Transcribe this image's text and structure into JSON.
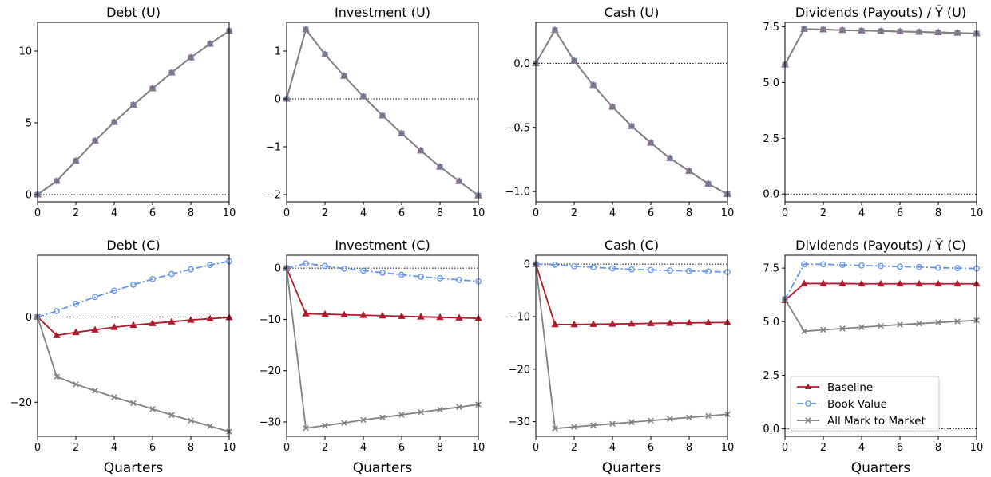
{
  "colors": {
    "baseline": "#b2182b",
    "book_value": "#6495ed",
    "mark_to_market": "#808080",
    "zero_line": "#000000"
  },
  "legend": {
    "placement": "lower-left",
    "entries": [
      {
        "label": "Baseline",
        "marker": "triangle",
        "style": "solid"
      },
      {
        "label": "Book Value",
        "marker": "circle",
        "style": "dashdot"
      },
      {
        "label": "All Mark to Market",
        "marker": "x",
        "style": "solid"
      }
    ]
  },
  "chart_data": [
    {
      "type": "line",
      "title": "Debt (U)",
      "xlabel": "",
      "ylabel": "",
      "x": [
        0,
        1,
        2,
        3,
        4,
        5,
        6,
        7,
        8,
        9,
        10
      ],
      "xlim": [
        0,
        10
      ],
      "xticks": [
        0,
        2,
        4,
        6,
        8,
        10
      ],
      "ylim": [
        -0.5,
        12
      ],
      "yticks": [
        0,
        5,
        10
      ],
      "ytick_labels": [
        "0",
        "5",
        "10"
      ],
      "zero_line": true,
      "series": [
        {
          "name": "Baseline",
          "values": [
            0,
            0.95,
            2.35,
            3.75,
            5.05,
            6.25,
            7.4,
            8.5,
            9.55,
            10.5,
            11.4
          ]
        },
        {
          "name": "Book Value",
          "values": [
            0,
            0.95,
            2.35,
            3.75,
            5.05,
            6.25,
            7.4,
            8.5,
            9.55,
            10.5,
            11.4
          ]
        },
        {
          "name": "All Mark to Market",
          "values": [
            0,
            0.95,
            2.35,
            3.75,
            5.05,
            6.25,
            7.4,
            8.5,
            9.55,
            10.5,
            11.4
          ]
        }
      ]
    },
    {
      "type": "line",
      "title": "Investment (U)",
      "xlabel": "",
      "ylabel": "",
      "x": [
        0,
        1,
        2,
        3,
        4,
        5,
        6,
        7,
        8,
        9,
        10
      ],
      "xlim": [
        0,
        10
      ],
      "xticks": [
        0,
        2,
        4,
        6,
        8,
        10
      ],
      "ylim": [
        -2.15,
        1.6
      ],
      "yticks": [
        -2,
        -1,
        0,
        1
      ],
      "ytick_labels": [
        "−2",
        "−1",
        "0",
        "1"
      ],
      "zero_line": true,
      "series": [
        {
          "name": "Baseline",
          "values": [
            0,
            1.45,
            0.93,
            0.48,
            0.05,
            -0.35,
            -0.72,
            -1.08,
            -1.42,
            -1.72,
            -2.02
          ]
        },
        {
          "name": "Book Value",
          "values": [
            0,
            1.45,
            0.93,
            0.48,
            0.05,
            -0.35,
            -0.72,
            -1.08,
            -1.42,
            -1.72,
            -2.02
          ]
        },
        {
          "name": "All Mark to Market",
          "values": [
            0,
            1.45,
            0.93,
            0.48,
            0.05,
            -0.35,
            -0.72,
            -1.08,
            -1.42,
            -1.72,
            -2.02
          ]
        }
      ]
    },
    {
      "type": "line",
      "title": "Cash (U)",
      "xlabel": "",
      "ylabel": "",
      "x": [
        0,
        1,
        2,
        3,
        4,
        5,
        6,
        7,
        8,
        9,
        10
      ],
      "xlim": [
        0,
        10
      ],
      "xticks": [
        0,
        2,
        4,
        6,
        8,
        10
      ],
      "ylim": [
        -1.08,
        0.32
      ],
      "yticks": [
        -1.0,
        -0.5,
        0.0
      ],
      "ytick_labels": [
        "−1.0",
        "−0.5",
        "0.0"
      ],
      "zero_line": true,
      "series": [
        {
          "name": "Baseline",
          "values": [
            0,
            0.26,
            0.02,
            -0.17,
            -0.34,
            -0.49,
            -0.62,
            -0.74,
            -0.84,
            -0.94,
            -1.02
          ]
        },
        {
          "name": "Book Value",
          "values": [
            0,
            0.26,
            0.02,
            -0.17,
            -0.34,
            -0.49,
            -0.62,
            -0.74,
            -0.84,
            -0.94,
            -1.02
          ]
        },
        {
          "name": "All Mark to Market",
          "values": [
            0,
            0.26,
            0.02,
            -0.17,
            -0.34,
            -0.49,
            -0.62,
            -0.74,
            -0.84,
            -0.94,
            -1.02
          ]
        }
      ]
    },
    {
      "type": "line",
      "title": "Dividends (Payouts) / Ȳ (U)",
      "xlabel": "",
      "ylabel": "",
      "x": [
        0,
        1,
        2,
        3,
        4,
        5,
        6,
        7,
        8,
        9,
        10
      ],
      "xlim": [
        0,
        10
      ],
      "xticks": [
        0,
        2,
        4,
        6,
        8,
        10
      ],
      "ylim": [
        -0.35,
        7.7
      ],
      "yticks": [
        0.0,
        2.5,
        5.0,
        7.5
      ],
      "ytick_labels": [
        "0.0",
        "2.5",
        "5.0",
        "7.5"
      ],
      "zero_line": true,
      "series": [
        {
          "name": "Baseline",
          "values": [
            5.8,
            7.4,
            7.38,
            7.35,
            7.33,
            7.31,
            7.29,
            7.27,
            7.25,
            7.23,
            7.2
          ]
        },
        {
          "name": "Book Value",
          "values": [
            5.8,
            7.4,
            7.38,
            7.35,
            7.33,
            7.31,
            7.29,
            7.27,
            7.25,
            7.23,
            7.2
          ]
        },
        {
          "name": "All Mark to Market",
          "values": [
            5.8,
            7.4,
            7.38,
            7.35,
            7.33,
            7.31,
            7.29,
            7.27,
            7.25,
            7.23,
            7.2
          ]
        }
      ]
    },
    {
      "type": "line",
      "title": "Debt (C)",
      "xlabel": "Quarters",
      "ylabel": "",
      "x": [
        0,
        1,
        2,
        3,
        4,
        5,
        6,
        7,
        8,
        9,
        10
      ],
      "xlim": [
        0,
        10
      ],
      "xticks": [
        0,
        2,
        4,
        6,
        8,
        10
      ],
      "ylim": [
        -28,
        14.5
      ],
      "yticks": [
        -20,
        0
      ],
      "ytick_labels": [
        "−20",
        "0"
      ],
      "zero_line": true,
      "series": [
        {
          "name": "Baseline",
          "values": [
            0,
            -4.3,
            -3.6,
            -3.0,
            -2.4,
            -1.9,
            -1.5,
            -1.1,
            -0.7,
            -0.4,
            -0.1
          ]
        },
        {
          "name": "Book Value",
          "values": [
            0,
            1.4,
            3.1,
            4.7,
            6.2,
            7.6,
            8.9,
            10.1,
            11.2,
            12.2,
            13.1
          ]
        },
        {
          "name": "All Mark to Market",
          "values": [
            0,
            -14.0,
            -15.8,
            -17.3,
            -18.8,
            -20.2,
            -21.6,
            -23.0,
            -24.3,
            -25.6,
            -26.9
          ]
        }
      ]
    },
    {
      "type": "line",
      "title": "Investment (C)",
      "xlabel": "Quarters",
      "ylabel": "",
      "x": [
        0,
        1,
        2,
        3,
        4,
        5,
        6,
        7,
        8,
        9,
        10
      ],
      "xlim": [
        0,
        10
      ],
      "xticks": [
        0,
        2,
        4,
        6,
        8,
        10
      ],
      "ylim": [
        -32.8,
        2.5
      ],
      "yticks": [
        -30,
        -20,
        -10,
        0
      ],
      "ytick_labels": [
        "−30",
        "−20",
        "−10",
        "0"
      ],
      "zero_line": true,
      "series": [
        {
          "name": "Baseline",
          "values": [
            0,
            -8.9,
            -9.0,
            -9.1,
            -9.2,
            -9.3,
            -9.4,
            -9.5,
            -9.6,
            -9.7,
            -9.8
          ]
        },
        {
          "name": "Book Value",
          "values": [
            0,
            0.9,
            0.4,
            -0.1,
            -0.5,
            -0.9,
            -1.3,
            -1.7,
            -2.0,
            -2.3,
            -2.6
          ]
        },
        {
          "name": "All Mark to Market",
          "values": [
            0,
            -31.2,
            -30.7,
            -30.2,
            -29.6,
            -29.1,
            -28.6,
            -28.1,
            -27.6,
            -27.1,
            -26.6
          ]
        }
      ]
    },
    {
      "type": "line",
      "title": "Cash (C)",
      "xlabel": "Quarters",
      "ylabel": "",
      "x": [
        0,
        1,
        2,
        3,
        4,
        5,
        6,
        7,
        8,
        9,
        10
      ],
      "xlim": [
        0,
        10
      ],
      "xticks": [
        0,
        2,
        4,
        6,
        8,
        10
      ],
      "ylim": [
        -32.8,
        1.7
      ],
      "yticks": [
        -30,
        -20,
        -10,
        0
      ],
      "ytick_labels": [
        "−30",
        "−20",
        "−10",
        "0"
      ],
      "zero_line": true,
      "series": [
        {
          "name": "Baseline",
          "values": [
            0,
            -11.5,
            -11.5,
            -11.45,
            -11.4,
            -11.35,
            -11.3,
            -11.25,
            -11.2,
            -11.15,
            -11.1
          ]
        },
        {
          "name": "Book Value",
          "values": [
            0,
            -0.1,
            -0.4,
            -0.6,
            -0.8,
            -1.0,
            -1.1,
            -1.2,
            -1.3,
            -1.4,
            -1.5
          ]
        },
        {
          "name": "All Mark to Market",
          "values": [
            0,
            -31.3,
            -31.0,
            -30.7,
            -30.4,
            -30.1,
            -29.8,
            -29.5,
            -29.2,
            -28.9,
            -28.6
          ]
        }
      ]
    },
    {
      "type": "line",
      "title": "Dividends (Payouts) / Ȳ (C)",
      "xlabel": "Quarters",
      "ylabel": "",
      "x": [
        0,
        1,
        2,
        3,
        4,
        5,
        6,
        7,
        8,
        9,
        10
      ],
      "xlim": [
        0,
        10
      ],
      "xticks": [
        0,
        2,
        4,
        6,
        8,
        10
      ],
      "ylim": [
        -0.35,
        8.1
      ],
      "yticks": [
        0.0,
        2.5,
        5.0,
        7.5
      ],
      "ytick_labels": [
        "0.0",
        "2.5",
        "5.0",
        "7.5"
      ],
      "zero_line": true,
      "legend": true,
      "series": [
        {
          "name": "Baseline",
          "values": [
            6.0,
            6.78,
            6.78,
            6.78,
            6.77,
            6.77,
            6.77,
            6.77,
            6.77,
            6.77,
            6.77
          ]
        },
        {
          "name": "Book Value",
          "values": [
            6.05,
            7.68,
            7.68,
            7.65,
            7.62,
            7.6,
            7.57,
            7.55,
            7.52,
            7.5,
            7.48
          ]
        },
        {
          "name": "All Mark to Market",
          "values": [
            6.05,
            4.55,
            4.62,
            4.68,
            4.74,
            4.8,
            4.86,
            4.91,
            4.96,
            5.01,
            5.06
          ]
        }
      ]
    }
  ]
}
